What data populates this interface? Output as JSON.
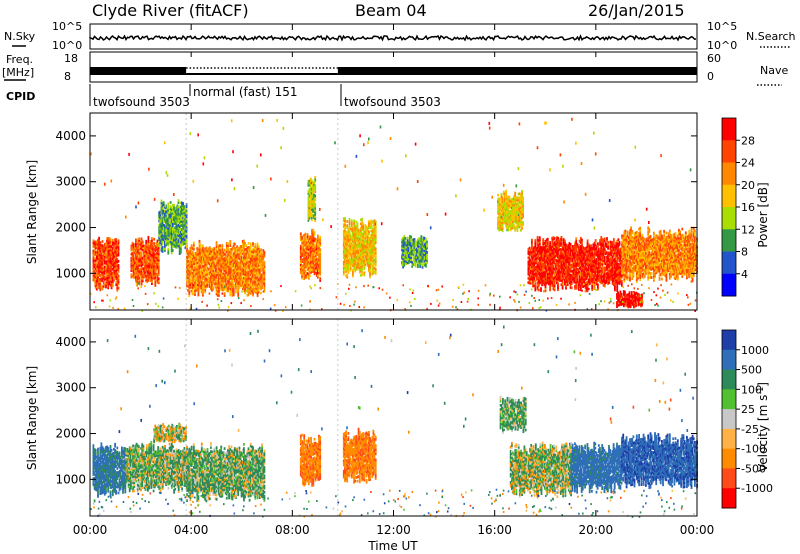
{
  "header": {
    "station": "Clyde River (fitACF)",
    "beam": "Beam 04",
    "date": "26/Jan/2015"
  },
  "noise_panel": {
    "left_label": "N.Sky",
    "left_ticks": [
      "10^5",
      "10^0"
    ],
    "right_ticks": [
      "10^5",
      "10^0"
    ],
    "right_label": "N.Search",
    "right_legend_style": "dotted"
  },
  "freq_panel": {
    "left_label_line1": "Freq.",
    "left_label_line2": "[MHz]",
    "left_ticks": [
      "18",
      "8"
    ],
    "right_ticks": [
      "60",
      "0"
    ],
    "right_label": "Nave",
    "right_legend_style": "dotted"
  },
  "cpid_panel": {
    "label": "CPID",
    "modes": [
      {
        "start_h": 0,
        "text": "twofsound 3503"
      },
      {
        "start_h": 3.8,
        "text": "normal (fast) 151"
      },
      {
        "start_h": 9.8,
        "text": "twofsound 3503"
      }
    ]
  },
  "axes": {
    "ylabel": "Slant Range [km]",
    "xlabel": "Time UT",
    "x_ticks": [
      "00:00",
      "04:00",
      "08:00",
      "12:00",
      "16:00",
      "20:00",
      "00:00"
    ],
    "y_ticks": [
      "1000",
      "2000",
      "3000",
      "4000"
    ]
  },
  "power_scale": {
    "title": "Power [dB]",
    "labels": [
      "28",
      "24",
      "20",
      "16",
      "12",
      "8",
      "4"
    ],
    "colors": [
      "#ff0000",
      "#ff4400",
      "#ff8800",
      "#ffc000",
      "#aadd00",
      "#339944",
      "#2255cc",
      "#0000ff"
    ]
  },
  "velocity_scale": {
    "title_main": "Velocity",
    "title_units": "[m s",
    "title_exp": "-1",
    "title_close": "]",
    "labels": [
      "1000",
      "500",
      "100",
      "25",
      "-25",
      "-100",
      "-500",
      "-1000"
    ],
    "colors": [
      "#1e3ea8",
      "#2f6fb8",
      "#2f8a5a",
      "#52c030",
      "#c8c8c8",
      "#ffb347",
      "#ff8c00",
      "#ff4a1a",
      "#ff0000"
    ]
  },
  "chart_data": {
    "type": "heatmap",
    "x_units": "hours UT",
    "xlim": [
      0,
      24
    ],
    "ylim": [
      200,
      4500
    ],
    "panels": [
      {
        "name": "Power",
        "units": "dB",
        "scale_range": [
          0,
          30
        ],
        "regions": [
          {
            "t": [
              0.1,
              1.1
            ],
            "r": [
              600,
              1800
            ],
            "v": 25
          },
          {
            "t": [
              1.6,
              2.7
            ],
            "r": [
              700,
              1800
            ],
            "v": 24
          },
          {
            "t": [
              2.7,
              3.8
            ],
            "r": [
              1400,
              2600
            ],
            "v": 10
          },
          {
            "t": [
              3.8,
              6.9
            ],
            "r": [
              500,
              1700
            ],
            "v": 21
          },
          {
            "t": [
              8.3,
              9.1
            ],
            "r": [
              800,
              2000
            ],
            "v": 22
          },
          {
            "t": [
              8.6,
              8.9
            ],
            "r": [
              2100,
              3100
            ],
            "v": 14
          },
          {
            "t": [
              10.0,
              11.3
            ],
            "r": [
              900,
              2200
            ],
            "v": 17
          },
          {
            "t": [
              12.3,
              13.3
            ],
            "r": [
              1100,
              1800
            ],
            "v": 10
          },
          {
            "t": [
              16.1,
              17.1
            ],
            "r": [
              1900,
              2800
            ],
            "v": 16
          },
          {
            "t": [
              17.3,
              21.0
            ],
            "r": [
              600,
              1800
            ],
            "v": 27
          },
          {
            "t": [
              21.0,
              24.0
            ],
            "r": [
              800,
              2000
            ],
            "v": 21
          },
          {
            "t": [
              20.8,
              21.8
            ],
            "r": [
              250,
              600
            ],
            "v": 29
          }
        ]
      },
      {
        "name": "Velocity",
        "units": "m s-1",
        "regions": [
          {
            "t": [
              0.1,
              1.4
            ],
            "r": [
              600,
              1800
            ],
            "v": 600
          },
          {
            "t": [
              1.4,
              3.8
            ],
            "r": [
              700,
              1800
            ],
            "v": 100
          },
          {
            "t": [
              2.5,
              3.8
            ],
            "r": [
              1800,
              2200
            ],
            "v": -50
          },
          {
            "t": [
              3.8,
              6.9
            ],
            "r": [
              500,
              1800
            ],
            "v": 120
          },
          {
            "t": [
              8.3,
              9.1
            ],
            "r": [
              800,
              2000
            ],
            "v": -400
          },
          {
            "t": [
              10.0,
              11.3
            ],
            "r": [
              900,
              2100
            ],
            "v": -400
          },
          {
            "t": [
              16.2,
              17.2
            ],
            "r": [
              2000,
              2800
            ],
            "v": 150
          },
          {
            "t": [
              16.6,
              19.0
            ],
            "r": [
              600,
              1800
            ],
            "v": 60
          },
          {
            "t": [
              19.0,
              21.0
            ],
            "r": [
              700,
              1800
            ],
            "v": 700
          },
          {
            "t": [
              21.0,
              24.0
            ],
            "r": [
              800,
              2000
            ],
            "v": 900
          }
        ]
      }
    ]
  }
}
